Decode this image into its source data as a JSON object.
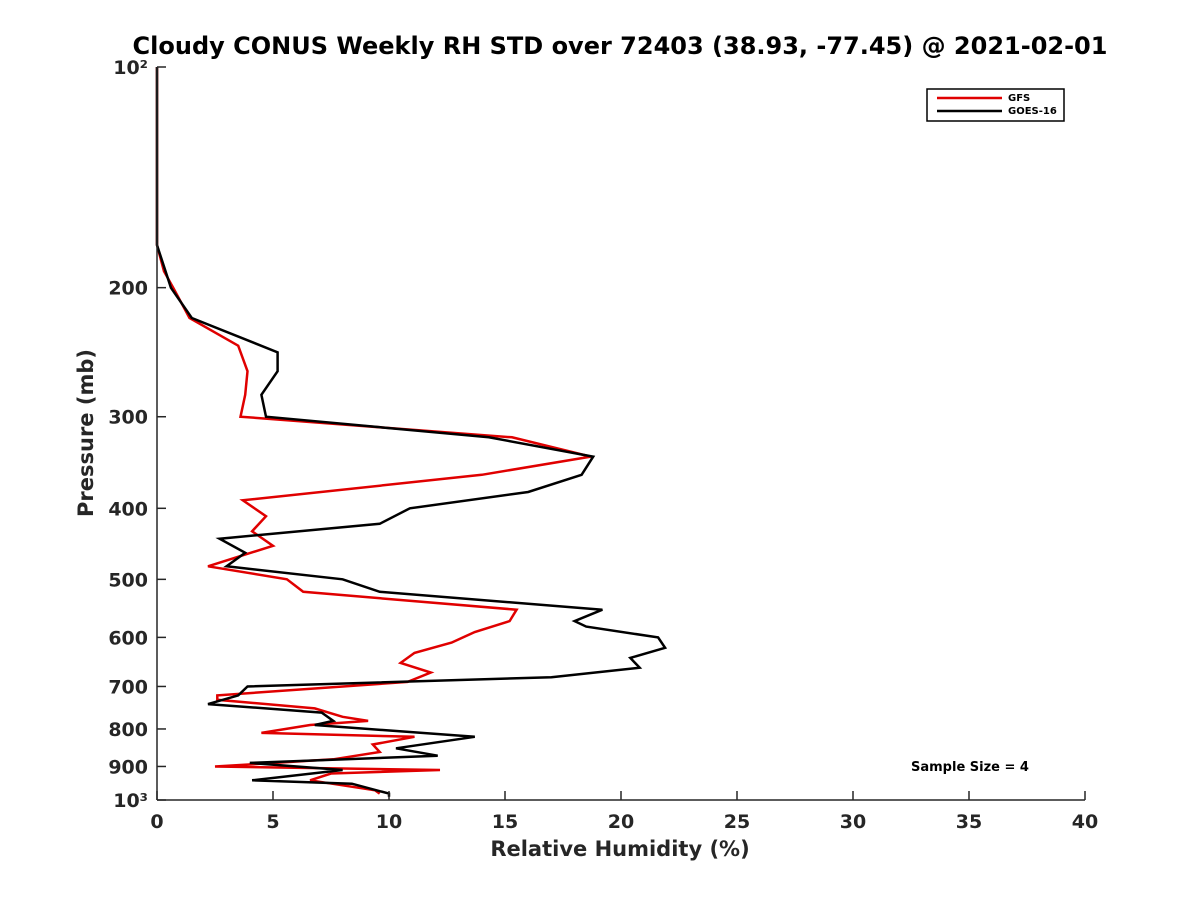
{
  "chart_data": {
    "type": "line",
    "title": "Cloudy CONUS Weekly RH STD over 72403 (38.93, -77.45) @ 2021-02-01",
    "xlabel": "Relative Humidity (%)",
    "ylabel": "Pressure (mb)",
    "xlim": [
      0,
      40
    ],
    "ylim": [
      100,
      1000
    ],
    "y_scale": "log",
    "y_reversed": true,
    "x_ticks": [
      0,
      5,
      10,
      15,
      20,
      25,
      30,
      35,
      40
    ],
    "x_tick_labels": [
      "0",
      "5",
      "10",
      "15",
      "20",
      "25",
      "30",
      "35",
      "40"
    ],
    "y_ticks": [
      100,
      200,
      300,
      400,
      500,
      600,
      700,
      800,
      900,
      1000
    ],
    "y_tick_labels": [
      "10²",
      "200",
      "300",
      "400",
      "500",
      "600",
      "700",
      "800",
      "900",
      "10³"
    ],
    "legend_position": "top-right",
    "annotation": "Sample Size = 4",
    "series": [
      {
        "name": "GFS",
        "color": "#e00000",
        "points": [
          [
            0,
            100
          ],
          [
            0,
            125
          ],
          [
            0,
            150
          ],
          [
            0,
            175
          ],
          [
            0.3,
            190
          ],
          [
            0.7,
            200
          ],
          [
            1.4,
            220
          ],
          [
            3.5,
            240
          ],
          [
            3.9,
            260
          ],
          [
            3.8,
            280
          ],
          [
            3.6,
            300
          ],
          [
            15.3,
            320
          ],
          [
            18.7,
            340
          ],
          [
            14,
            360
          ],
          [
            3.7,
            390
          ],
          [
            4.7,
            410
          ],
          [
            4.1,
            430
          ],
          [
            5,
            450
          ],
          [
            2.2,
            480
          ],
          [
            5.6,
            500
          ],
          [
            6.3,
            520
          ],
          [
            15.5,
            550
          ],
          [
            15.2,
            570
          ],
          [
            13.7,
            590
          ],
          [
            12.7,
            610
          ],
          [
            11.1,
            630
          ],
          [
            10.5,
            650
          ],
          [
            11.8,
            670
          ],
          [
            10.8,
            690
          ],
          [
            2.6,
            720
          ],
          [
            2.6,
            730
          ],
          [
            6.8,
            750
          ],
          [
            8,
            770
          ],
          [
            9.1,
            780
          ],
          [
            6.6,
            790
          ],
          [
            4.5,
            810
          ],
          [
            11.1,
            820
          ],
          [
            9.3,
            840
          ],
          [
            9.6,
            860
          ],
          [
            7.6,
            880
          ],
          [
            2.5,
            900
          ],
          [
            12.2,
            910
          ],
          [
            7.5,
            920
          ],
          [
            6.6,
            940
          ],
          [
            9.4,
            970
          ],
          [
            9.6,
            980
          ]
        ]
      },
      {
        "name": "GOES-16",
        "color": "#000000",
        "points": [
          [
            0,
            100
          ],
          [
            0,
            125
          ],
          [
            0,
            150
          ],
          [
            0,
            175
          ],
          [
            0.6,
            200
          ],
          [
            1.5,
            220
          ],
          [
            5.2,
            245
          ],
          [
            5.2,
            260
          ],
          [
            4.5,
            280
          ],
          [
            4.7,
            300
          ],
          [
            14.3,
            320
          ],
          [
            18.8,
            340
          ],
          [
            18.3,
            360
          ],
          [
            16,
            380
          ],
          [
            10.9,
            400
          ],
          [
            9.6,
            420
          ],
          [
            2.7,
            440
          ],
          [
            3.8,
            460
          ],
          [
            3,
            480
          ],
          [
            8,
            500
          ],
          [
            9.6,
            520
          ],
          [
            19.2,
            550
          ],
          [
            18,
            570
          ],
          [
            18.5,
            580
          ],
          [
            21.6,
            600
          ],
          [
            21.9,
            620
          ],
          [
            20.4,
            640
          ],
          [
            20.8,
            660
          ],
          [
            17,
            680
          ],
          [
            3.9,
            700
          ],
          [
            3.5,
            720
          ],
          [
            2.2,
            740
          ],
          [
            7.1,
            760
          ],
          [
            7.6,
            780
          ],
          [
            6.8,
            790
          ],
          [
            13.7,
            820
          ],
          [
            10.3,
            850
          ],
          [
            12.1,
            870
          ],
          [
            4,
            890
          ],
          [
            8,
            910
          ],
          [
            4.1,
            940
          ],
          [
            8.4,
            950
          ],
          [
            10,
            980
          ],
          [
            10,
            990
          ]
        ]
      }
    ]
  }
}
